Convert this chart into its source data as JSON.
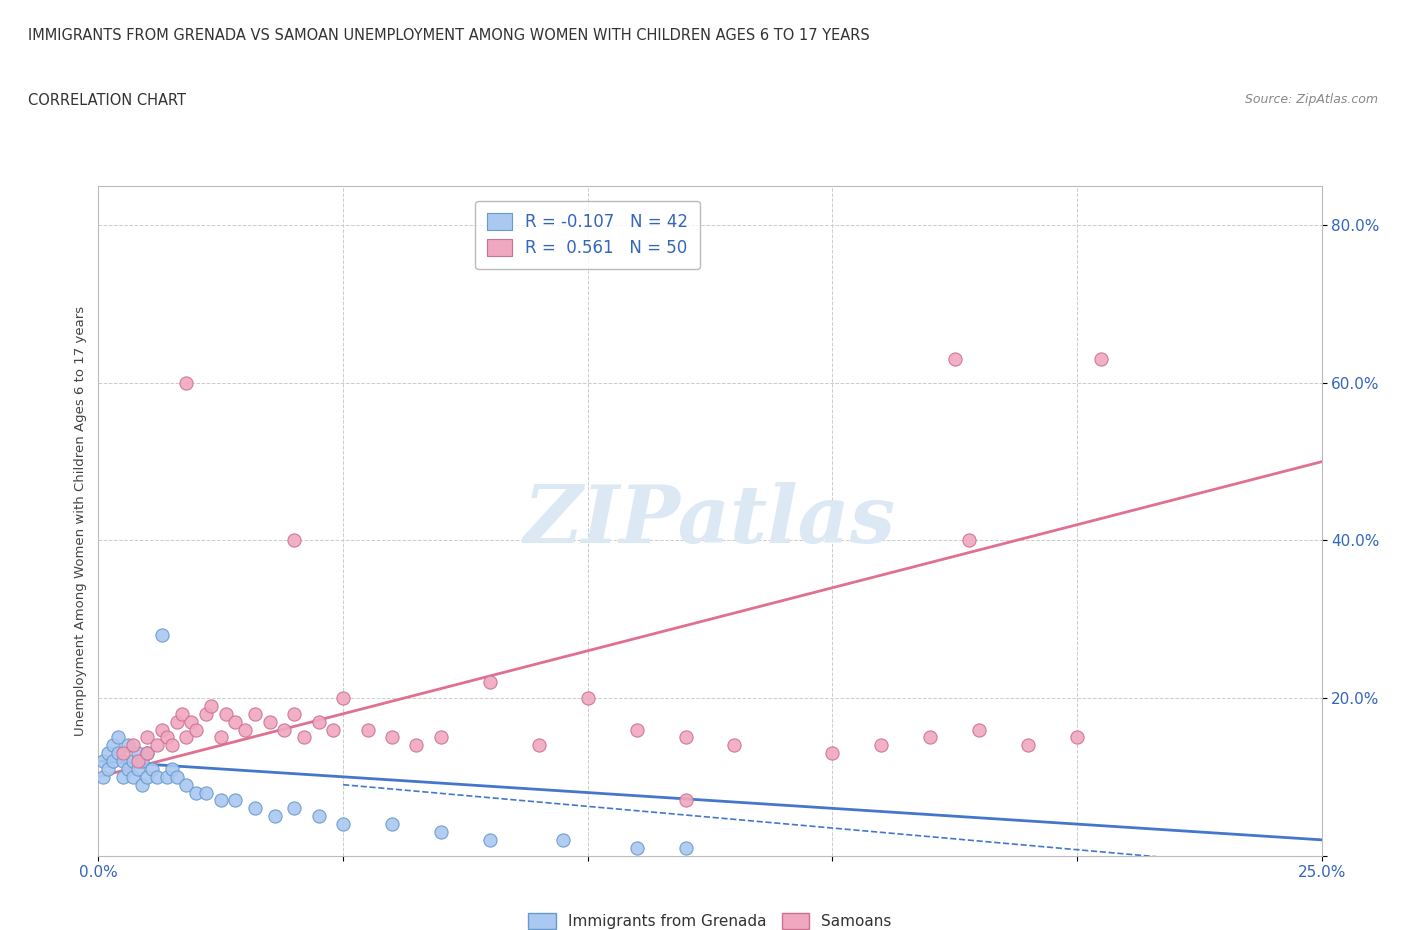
{
  "title": "IMMIGRANTS FROM GRENADA VS SAMOAN UNEMPLOYMENT AMONG WOMEN WITH CHILDREN AGES 6 TO 17 YEARS",
  "subtitle": "CORRELATION CHART",
  "source": "Source: ZipAtlas.com",
  "ylabel": "Unemployment Among Women with Children Ages 6 to 17 years",
  "xlim": [
    0.0,
    0.25
  ],
  "ylim": [
    0.0,
    0.85
  ],
  "background_color": "#ffffff",
  "grid_color": "#cccccc",
  "watermark_text": "ZIPatlas",
  "grenada_color": "#aac8f0",
  "grenada_edge_color": "#6699cc",
  "samoan_color": "#f0a8c0",
  "samoan_edge_color": "#cc7090",
  "grenada_R": -0.107,
  "grenada_N": 42,
  "samoan_R": 0.561,
  "samoan_N": 50,
  "grenada_x": [
    0.001,
    0.001,
    0.002,
    0.002,
    0.003,
    0.003,
    0.004,
    0.004,
    0.005,
    0.005,
    0.006,
    0.006,
    0.007,
    0.007,
    0.008,
    0.008,
    0.009,
    0.009,
    0.01,
    0.01,
    0.011,
    0.012,
    0.013,
    0.014,
    0.015,
    0.016,
    0.018,
    0.02,
    0.022,
    0.025,
    0.028,
    0.032,
    0.036,
    0.04,
    0.045,
    0.05,
    0.06,
    0.07,
    0.08,
    0.095,
    0.11,
    0.12
  ],
  "grenada_y": [
    0.12,
    0.1,
    0.13,
    0.11,
    0.14,
    0.12,
    0.15,
    0.13,
    0.1,
    0.12,
    0.11,
    0.14,
    0.12,
    0.1,
    0.13,
    0.11,
    0.12,
    0.09,
    0.13,
    0.1,
    0.11,
    0.1,
    0.28,
    0.1,
    0.11,
    0.1,
    0.09,
    0.08,
    0.08,
    0.07,
    0.07,
    0.06,
    0.05,
    0.06,
    0.05,
    0.04,
    0.04,
    0.03,
    0.02,
    0.02,
    0.01,
    0.01
  ],
  "samoan_x": [
    0.005,
    0.007,
    0.008,
    0.01,
    0.01,
    0.012,
    0.013,
    0.014,
    0.015,
    0.016,
    0.017,
    0.018,
    0.019,
    0.02,
    0.022,
    0.023,
    0.025,
    0.026,
    0.028,
    0.03,
    0.032,
    0.035,
    0.038,
    0.04,
    0.042,
    0.045,
    0.048,
    0.05,
    0.055,
    0.06,
    0.065,
    0.07,
    0.08,
    0.09,
    0.1,
    0.11,
    0.12,
    0.13,
    0.15,
    0.16,
    0.17,
    0.18,
    0.19,
    0.2,
    0.205,
    0.175,
    0.178,
    0.04,
    0.018,
    0.12
  ],
  "samoan_y": [
    0.13,
    0.14,
    0.12,
    0.15,
    0.13,
    0.14,
    0.16,
    0.15,
    0.14,
    0.17,
    0.18,
    0.15,
    0.17,
    0.16,
    0.18,
    0.19,
    0.15,
    0.18,
    0.17,
    0.16,
    0.18,
    0.17,
    0.16,
    0.18,
    0.15,
    0.17,
    0.16,
    0.2,
    0.16,
    0.15,
    0.14,
    0.15,
    0.22,
    0.14,
    0.2,
    0.16,
    0.15,
    0.14,
    0.13,
    0.14,
    0.15,
    0.16,
    0.14,
    0.15,
    0.63,
    0.63,
    0.4,
    0.4,
    0.6,
    0.07
  ],
  "samoan_trend_x0": 0.0,
  "samoan_trend_y0": 0.1,
  "samoan_trend_x1": 0.25,
  "samoan_trend_y1": 0.5,
  "grenada_trend_x0": 0.0,
  "grenada_trend_y0": 0.12,
  "grenada_trend_x1": 0.25,
  "grenada_trend_y1": 0.02
}
